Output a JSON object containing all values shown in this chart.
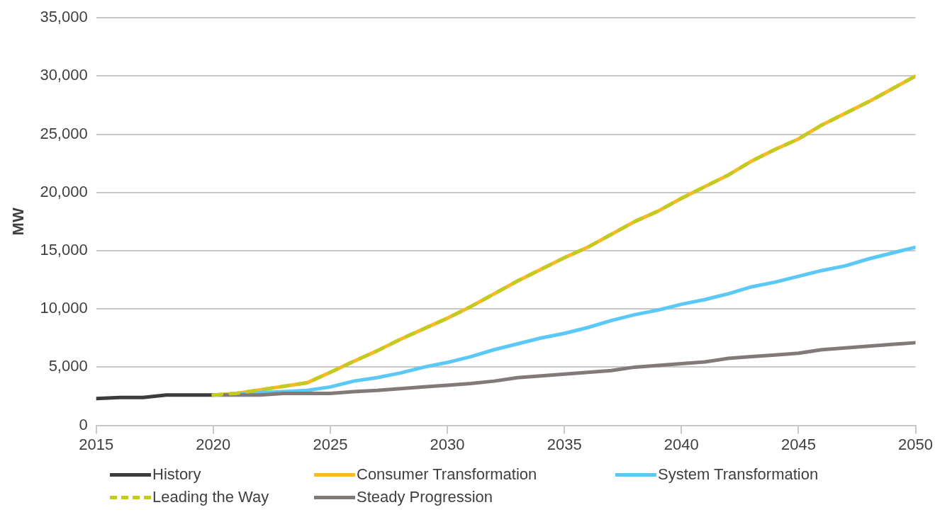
{
  "chart_data": {
    "type": "line",
    "ylabel": "MW",
    "xlim": [
      2015,
      2050
    ],
    "xticks": [
      2015,
      2020,
      2025,
      2030,
      2035,
      2040,
      2045,
      2050
    ],
    "ylim": [
      0,
      35000
    ],
    "yticks": [
      {
        "value": 0,
        "label": "0"
      },
      {
        "value": 5000,
        "label": "5,000"
      },
      {
        "value": 10000,
        "label": "10,000"
      },
      {
        "value": 15000,
        "label": "15,000"
      },
      {
        "value": 20000,
        "label": "20,000"
      },
      {
        "value": 25000,
        "label": "25,000"
      },
      {
        "value": 30000,
        "label": "30,000"
      },
      {
        "value": 35000,
        "label": "35,000"
      }
    ],
    "grid": "y",
    "legend": "bottom",
    "marker": "none",
    "x": [
      2020,
      2021,
      2022,
      2023,
      2024,
      2025,
      2026,
      2027,
      2028,
      2029,
      2030,
      2031,
      2032,
      2033,
      2034,
      2035,
      2036,
      2037,
      2038,
      2039,
      2040,
      2041,
      2042,
      2043,
      2044,
      2045,
      2046,
      2047,
      2048,
      2049,
      2050
    ],
    "series": [
      {
        "name": "History",
        "color": "#3c3c3c",
        "x": [
          2015,
          2016,
          2017,
          2018,
          2019,
          2020
        ],
        "values": [
          2300,
          2400,
          2400,
          2600,
          2600,
          2600
        ]
      },
      {
        "name": "Consumer Transformation",
        "color": "#fbb928",
        "values": [
          2600,
          2750,
          3050,
          3350,
          3650,
          4550,
          5500,
          6400,
          7400,
          8300,
          9200,
          10200,
          11300,
          12400,
          13400,
          14400,
          15300,
          16400,
          17500,
          18400,
          19500,
          20500,
          21500,
          22700,
          23700,
          24600,
          25800,
          26800,
          27800,
          28900,
          30000
        ]
      },
      {
        "name": "System Transformation",
        "color": "#5bc8f5",
        "values": [
          null,
          2700,
          2800,
          2900,
          3000,
          3300,
          3800,
          4100,
          4500,
          5000,
          5400,
          5900,
          6500,
          7000,
          7500,
          7900,
          8400,
          9000,
          9500,
          9900,
          10400,
          10800,
          11300,
          11900,
          12300,
          12800,
          13300,
          13700,
          14300,
          14800,
          15300
        ]
      },
      {
        "name": "Leading the Way",
        "color": "#c3cb20",
        "line_style": "dashed",
        "values": [
          2600,
          2750,
          3050,
          3350,
          3650,
          4550,
          5500,
          6400,
          7400,
          8300,
          9200,
          10200,
          11300,
          12400,
          13400,
          14400,
          15300,
          16400,
          17500,
          18400,
          19500,
          20500,
          21500,
          22700,
          23700,
          24600,
          25800,
          26800,
          27800,
          28900,
          30000
        ]
      },
      {
        "name": "Steady Progression",
        "color": "#827a78",
        "values": [
          2600,
          2600,
          2600,
          2750,
          2750,
          2750,
          2900,
          3000,
          3150,
          3300,
          3450,
          3600,
          3800,
          4100,
          4250,
          4400,
          4550,
          4700,
          5000,
          5150,
          5300,
          5450,
          5750,
          5900,
          6050,
          6200,
          6500,
          6650,
          6800,
          6950,
          7100
        ]
      }
    ]
  }
}
